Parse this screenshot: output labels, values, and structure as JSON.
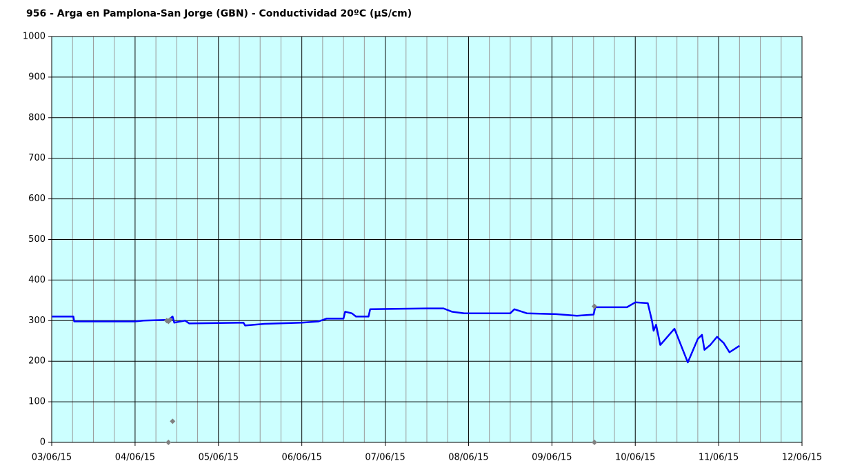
{
  "chart_data": {
    "type": "line",
    "title": "956 - Arga en Pamplona-San Jorge (GBN) - Conductividad 20ºC (µS/cm)",
    "xlim": [
      0,
      9
    ],
    "xticks": [
      {
        "value": 0,
        "label": "03/06/15"
      },
      {
        "value": 1,
        "label": "04/06/15"
      },
      {
        "value": 2,
        "label": "05/06/15"
      },
      {
        "value": 3,
        "label": "06/06/15"
      },
      {
        "value": 4,
        "label": "07/06/15"
      },
      {
        "value": 5,
        "label": "08/06/15"
      },
      {
        "value": 6,
        "label": "09/06/15"
      },
      {
        "value": 7,
        "label": "10/06/15"
      },
      {
        "value": 8,
        "label": "11/06/15"
      },
      {
        "value": 9,
        "label": "12/06/15"
      }
    ],
    "xminorticks": [
      0.25,
      0.5,
      0.75,
      1.25,
      1.5,
      1.75,
      2.25,
      2.5,
      2.75,
      3.25,
      3.5,
      3.75,
      4.25,
      4.5,
      4.75,
      5.25,
      5.5,
      5.75,
      6.25,
      6.5,
      6.75,
      7.25,
      7.5,
      7.75,
      8.25,
      8.5,
      8.75
    ],
    "ylim": [
      0,
      1000
    ],
    "yticks": [
      0,
      100,
      200,
      300,
      400,
      500,
      600,
      700,
      800,
      900,
      1000
    ],
    "grid": true,
    "background": "#ccffff",
    "series": [
      {
        "color": "#0000ff",
        "style": "line",
        "x": [
          0,
          0.26,
          0.27,
          1.0,
          1.1,
          1.4,
          1.45,
          1.47,
          1.6,
          1.65,
          2.3,
          2.32,
          2.55,
          3.0,
          3.2,
          3.3,
          3.5,
          3.52,
          3.6,
          3.65,
          3.8,
          3.82,
          4.5,
          4.7,
          4.8,
          4.95,
          5.5,
          5.55,
          5.7,
          6.05,
          6.3,
          6.5,
          6.52,
          6.9,
          7.0,
          7.15,
          7.2,
          7.22,
          7.25,
          7.3,
          7.47,
          7.63,
          7.75,
          7.8,
          7.83,
          7.9,
          7.98,
          8.06,
          8.13,
          8.19,
          8.25
        ],
        "values": [
          310,
          310,
          298,
          298,
          300,
          302,
          310,
          295,
          300,
          293,
          295,
          288,
          292,
          295,
          298,
          305,
          305,
          322,
          318,
          310,
          310,
          328,
          330,
          330,
          322,
          318,
          318,
          328,
          318,
          316,
          312,
          315,
          333,
          333,
          345,
          343,
          300,
          275,
          290,
          240,
          280,
          197,
          255,
          265,
          228,
          240,
          260,
          245,
          222,
          230,
          238
        ]
      },
      {
        "color": "#808080",
        "style": "markers",
        "x": [
          1.38,
          1.4,
          1.42,
          1.45,
          1.4,
          6.51,
          6.51
        ],
        "values": [
          300,
          298,
          302,
          52,
          0,
          335,
          0
        ]
      }
    ]
  }
}
